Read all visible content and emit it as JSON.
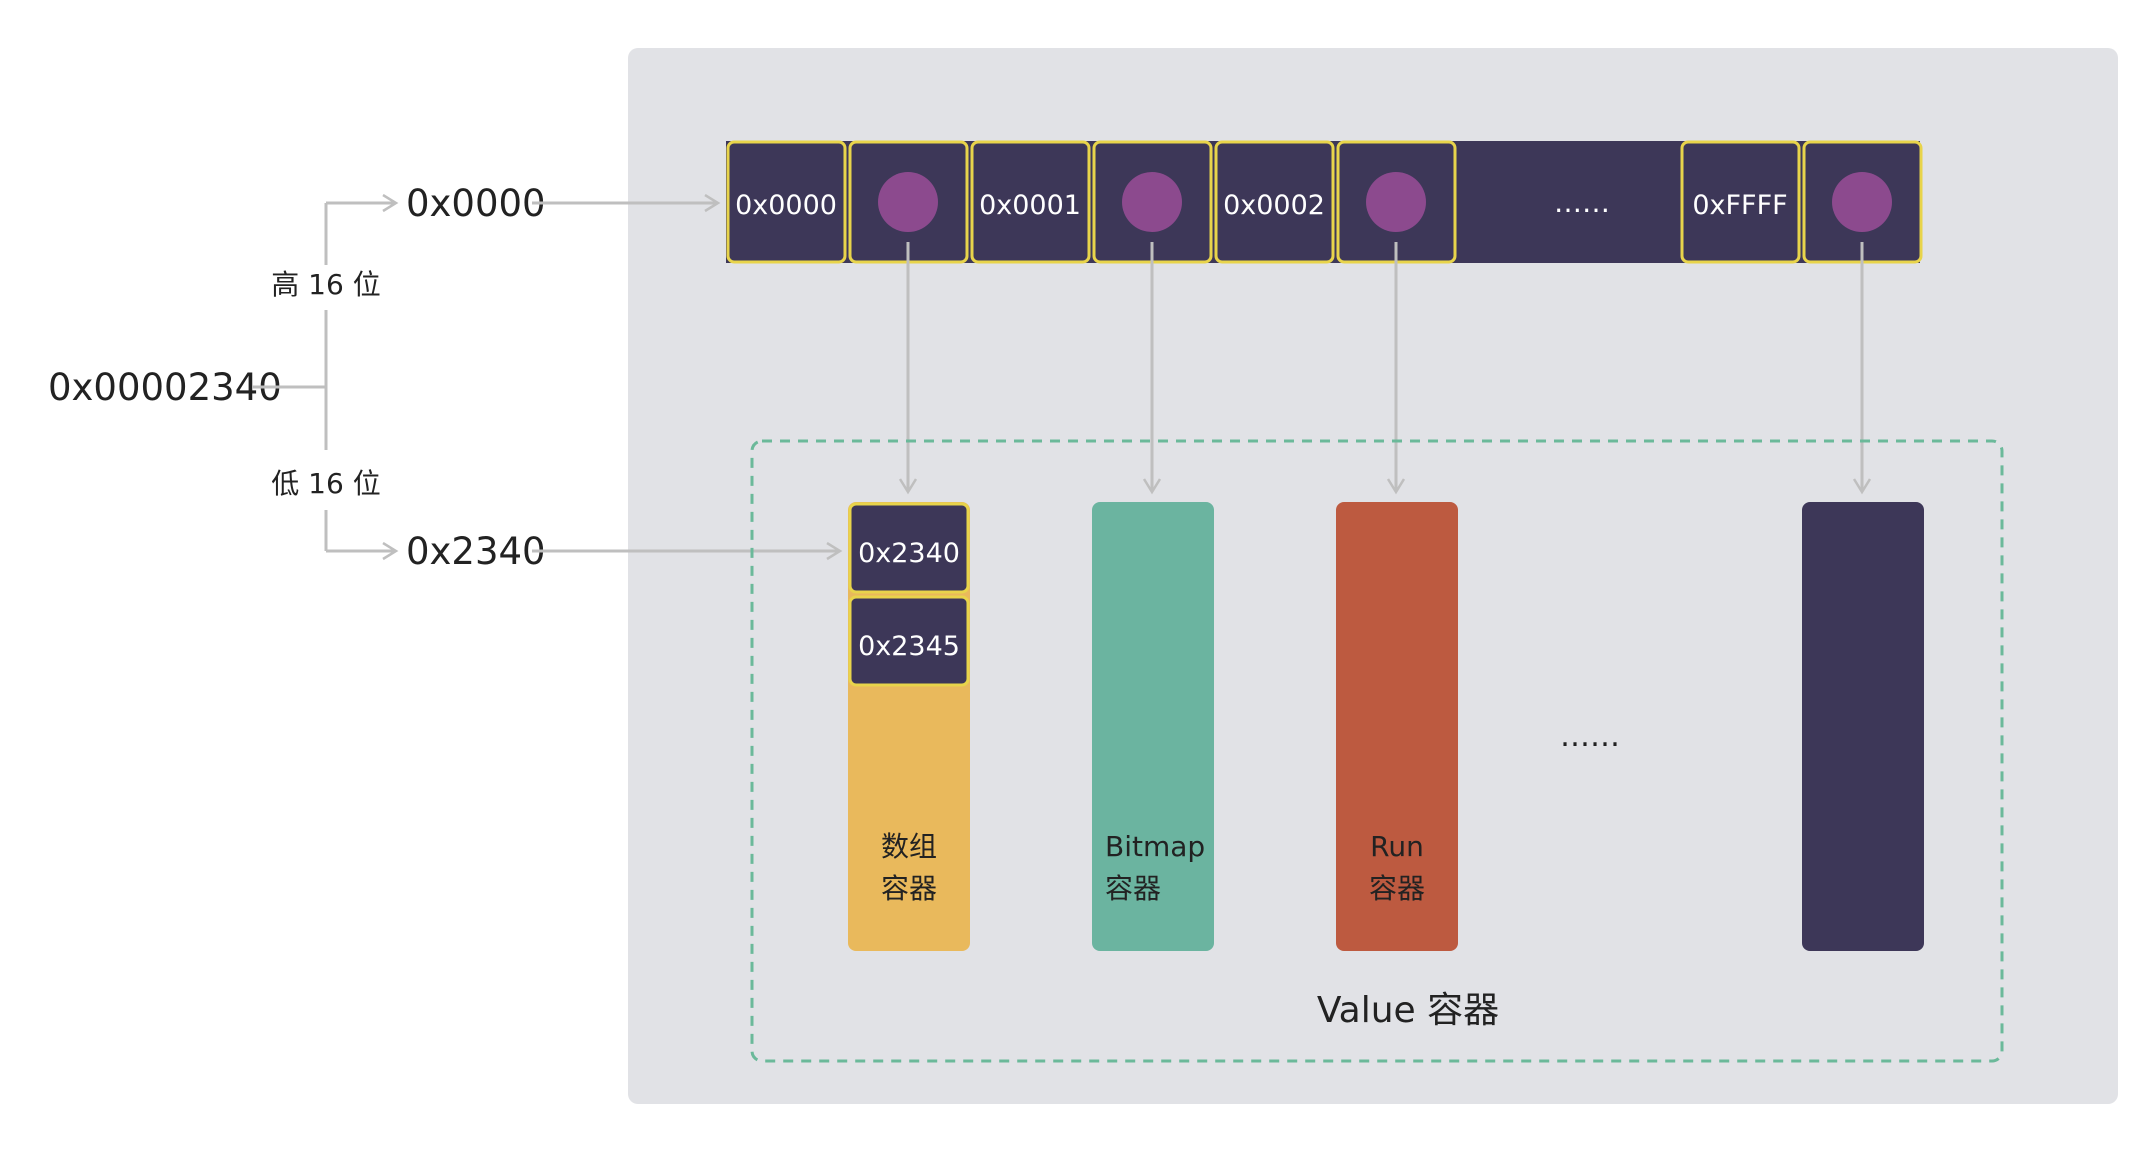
{
  "input": {
    "value": "0x00002340",
    "high_label": "高 16 位",
    "low_label": "低 16 位",
    "high_value": "0x0000",
    "low_value": "0x2340"
  },
  "keys": [
    {
      "label": "0x0000"
    },
    {
      "label": "0x0001"
    },
    {
      "label": "0x0002"
    },
    {
      "label": "0xFFFF"
    }
  ],
  "keys_ellipsis": "……",
  "containers": {
    "array": {
      "label_line1": "数组",
      "label_line2": "容器",
      "values": [
        "0x2340",
        "0x2345"
      ]
    },
    "bitmap": {
      "label_line1": "Bitmap",
      "label_line2": "容器"
    },
    "run": {
      "label_line1": "Run",
      "label_line2": "容器"
    },
    "ellipsis": "……",
    "group_label": "Value 容器"
  },
  "colors": {
    "panel": "#e1e2e6",
    "dark": "#3d3758",
    "border": "#e8d44b",
    "dot": "#8c4a8e",
    "array": "#e9b95c",
    "bitmap": "#6bb4a0",
    "run": "#bd5a40",
    "arrow": "#bfbfbf",
    "dashed": "#6bb99a"
  }
}
